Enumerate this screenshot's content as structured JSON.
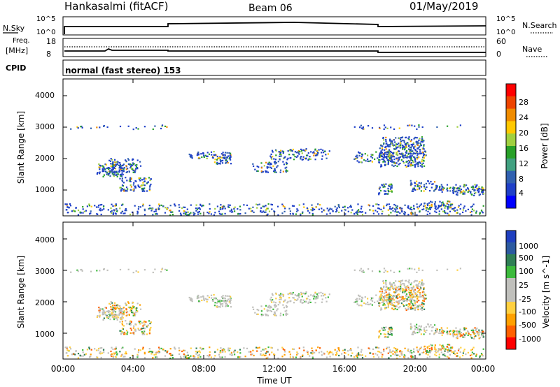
{
  "header": {
    "station": "Hankasalmi (fitACF)",
    "beam": "Beam 06",
    "date": "01/May/2019"
  },
  "noise_panel": {
    "left_label": "N.Sky",
    "right_label": "N.Search",
    "left_ticks": [
      "10^5",
      "10^0"
    ],
    "right_ticks": [
      "10^5",
      "10^0"
    ]
  },
  "freq_panel": {
    "left_label_1": "Freq.",
    "left_label_2": "[MHz]",
    "right_label": "Nave",
    "left_ticks": [
      "18",
      "8"
    ],
    "right_ticks": [
      "60",
      "0"
    ]
  },
  "cpid_panel": {
    "label": "CPID",
    "text": "normal (fast stereo) 153"
  },
  "chart_data": [
    {
      "type": "heatmap",
      "name": "power",
      "ylabel": "Slant Range [km]",
      "yticks": [
        "4000",
        "3000",
        "2000",
        "1000"
      ],
      "ylim": [
        200,
        4600
      ],
      "colorbar_label": "Power [dB]",
      "colorbar_ticks": [
        "28",
        "24",
        "20",
        "16",
        "12",
        "8",
        "4"
      ],
      "colorbar_colors": [
        "#ff0000",
        "#ee4400",
        "#f08c00",
        "#ffc800",
        "#a0d040",
        "#28a028",
        "#40a080",
        "#3060b0",
        "#1f40c8",
        "#0000ff"
      ]
    },
    {
      "type": "heatmap",
      "name": "velocity",
      "ylabel": "Slant Range [km]",
      "yticks": [
        "4000",
        "3000",
        "2000",
        "1000"
      ],
      "ylim": [
        200,
        4600
      ],
      "colorbar_label": "Velocity [m s^-1]",
      "colorbar_ticks": [
        "1000",
        "500",
        "100",
        "25",
        "-25",
        "-100",
        "-500",
        "-1000"
      ],
      "colorbar_colors": [
        "#1f3fbf",
        "#2c5aa0",
        "#2f7f55",
        "#3cba3c",
        "#c0c0bc",
        "#c0c0bc",
        "#ffd040",
        "#ffa000",
        "#ff6000",
        "#ff0000"
      ]
    }
  ],
  "xaxis": {
    "label": "Time UT",
    "ticks": [
      "00:00",
      "04:00",
      "08:00",
      "12:00",
      "16:00",
      "20:00",
      "00:00"
    ]
  }
}
